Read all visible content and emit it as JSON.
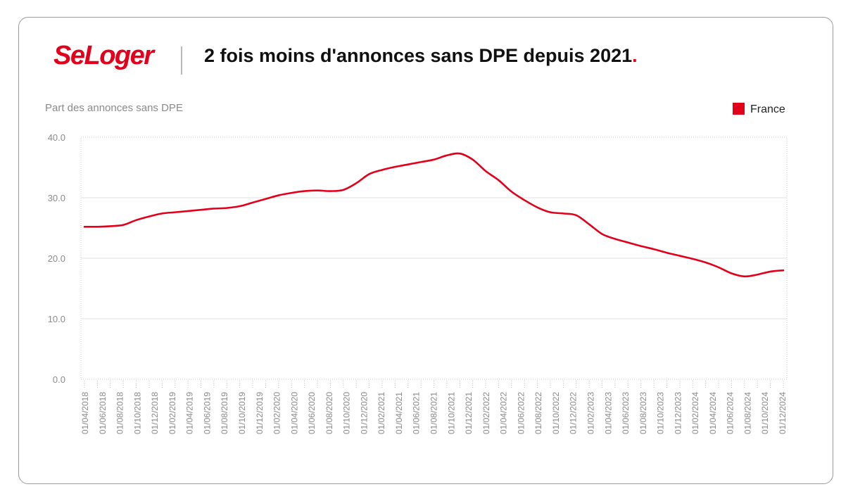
{
  "header": {
    "logo_text": "SeLoger",
    "title": "2 fois moins d'annonces sans DPE depuis 2021",
    "title_dot": "."
  },
  "colors": {
    "brand": "#e3001b",
    "grid": "#e2e2e2",
    "axis_text": "#8a8a8a"
  },
  "chart_data": {
    "type": "line",
    "title": "2 fois moins d'annonces sans DPE depuis 2021",
    "ylabel": "Part des annonces sans DPE",
    "xlabel": "",
    "ylim": [
      0,
      40
    ],
    "yticks": [
      "0.0",
      "10.0",
      "20.0",
      "30.0",
      "40.0"
    ],
    "grid": true,
    "legend_position": "top-right",
    "x_tick_labels": [
      "01/04/2018",
      "01/06/2018",
      "01/08/2018",
      "01/10/2018",
      "01/12/2018",
      "01/02/2019",
      "01/04/2019",
      "01/06/2019",
      "01/08/2019",
      "01/10/2019",
      "01/12/2019",
      "01/02/2020",
      "01/04/2020",
      "01/06/2020",
      "01/08/2020",
      "01/10/2020",
      "01/12/2020",
      "01/02/2021",
      "01/04/2021",
      "01/06/2021",
      "01/08/2021",
      "01/10/2021",
      "01/12/2021",
      "01/02/2022",
      "01/04/2022",
      "01/06/2022",
      "01/08/2022",
      "01/10/2022",
      "01/12/2022",
      "01/02/2023",
      "01/04/2023",
      "01/06/2023",
      "01/08/2023",
      "01/10/2023",
      "01/12/2023",
      "01/02/2024",
      "01/04/2024",
      "01/06/2024",
      "01/08/2024",
      "01/10/2024",
      "01/12/2024"
    ],
    "series": [
      {
        "name": "France",
        "color": "#e3001b",
        "values": [
          25.2,
          25.2,
          25.3,
          25.5,
          26.3,
          26.9,
          27.4,
          27.6,
          27.8,
          28.0,
          28.2,
          28.3,
          28.6,
          29.2,
          29.8,
          30.4,
          30.8,
          31.1,
          31.2,
          31.1,
          31.3,
          32.4,
          33.9,
          34.6,
          35.1,
          35.5,
          35.9,
          36.3,
          37.0,
          37.3,
          36.3,
          34.4,
          32.9,
          31.0,
          29.6,
          28.4,
          27.6,
          27.4,
          27.1,
          25.6,
          24.0,
          23.2,
          22.6,
          22.0,
          21.5,
          20.9,
          20.4,
          19.9,
          19.3,
          18.5,
          17.5,
          17.0,
          17.3,
          17.8,
          18.0
        ]
      }
    ]
  }
}
